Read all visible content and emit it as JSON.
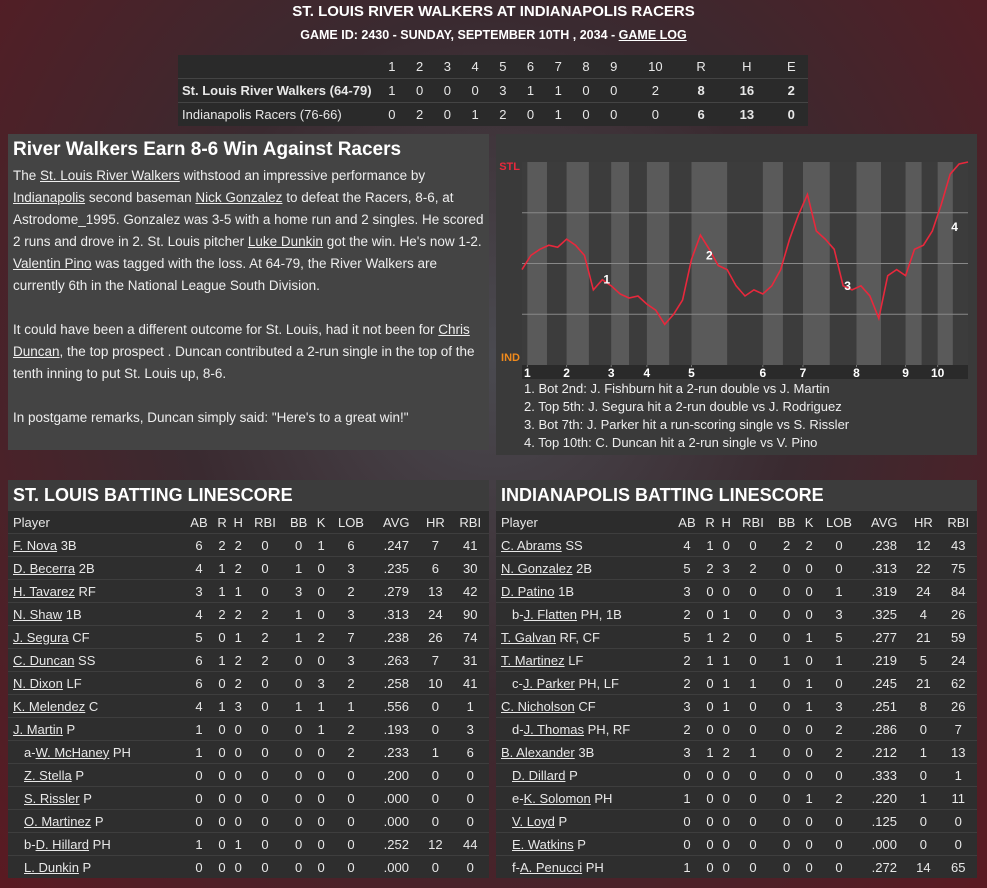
{
  "header": {
    "title": "ST. LOUIS RIVER WALKERS AT INDIANAPOLIS RACERS",
    "subtitle": "GAME ID: 2430 - SUNDAY, SEPTEMBER 10TH , 2034 - ",
    "game_log": "GAME LOG"
  },
  "linescore": {
    "columns": [
      "1",
      "2",
      "3",
      "4",
      "5",
      "6",
      "7",
      "8",
      "9",
      "10",
      "R",
      "H",
      "E"
    ],
    "rows": [
      {
        "team": "St. Louis River Walkers (64-79)",
        "values": [
          1,
          0,
          0,
          0,
          3,
          1,
          1,
          0,
          0,
          2,
          8,
          16,
          2
        ]
      },
      {
        "team": "Indianapolis Racers (76-66)",
        "values": [
          0,
          2,
          0,
          1,
          2,
          0,
          1,
          0,
          0,
          0,
          6,
          13,
          0
        ]
      }
    ]
  },
  "story": {
    "headline": "River Walkers Earn 8-6 Win Against Racers",
    "paragraphs": [
      [
        "The ",
        {
          "link": "St. Louis River Walkers"
        },
        " withstood an impressive performance by ",
        {
          "link": "Indianapolis"
        },
        " second baseman ",
        {
          "link": "Nick Gonzalez"
        },
        " to defeat the Racers, 8-6, at Astrodome_1995. Gonzalez was 3-5 with a home run and 2 singles. He scored 2 runs and drove in 2. St. Louis pitcher ",
        {
          "link": "Luke Dunkin"
        },
        " got the win. He's now 1-2. ",
        {
          "link": "Valentin Pino"
        },
        " was tagged with the loss. At 64-79, the River Walkers are currently 6th in the National League South Division."
      ],
      [
        "It could have been a different outcome for St. Louis, had it not been for ",
        {
          "link": "Chris Duncan"
        },
        ", the top prospect . Duncan contributed a 2-run single in the top of the tenth inning to put St. Louis up, 8-6."
      ],
      [
        "In postgame remarks, Duncan simply said: \"Here's to a great win!\""
      ]
    ]
  },
  "chart_data": {
    "type": "line",
    "top_label": "STL",
    "bottom_label": "IND",
    "color": "#e8283c",
    "ylim": [
      0,
      100
    ],
    "xlim": [
      0,
      50
    ],
    "xticks": [
      {
        "value": 0.6,
        "label": "1"
      },
      {
        "value": 5,
        "label": "2"
      },
      {
        "value": 10,
        "label": "3"
      },
      {
        "value": 14,
        "label": "4"
      },
      {
        "value": 19,
        "label": "5"
      },
      {
        "value": 27,
        "label": "6"
      },
      {
        "value": 31.5,
        "label": "7"
      },
      {
        "value": 37.5,
        "label": "8"
      },
      {
        "value": 43,
        "label": "9"
      },
      {
        "value": 46.6,
        "label": "10"
      }
    ],
    "values": [
      47,
      54,
      57,
      59,
      58,
      62,
      59,
      54,
      37,
      42,
      39,
      35,
      33,
      34,
      30,
      27,
      20,
      25,
      32,
      52,
      64,
      57,
      49,
      47,
      39,
      34,
      37,
      35,
      39,
      47,
      62,
      74,
      84,
      66,
      62,
      57,
      39,
      37,
      39,
      34,
      23,
      44,
      47,
      44,
      57,
      59,
      66,
      79,
      94,
      99,
      100
    ],
    "annotations": [
      {
        "label": "1",
        "x": 9.5,
        "y": 42
      },
      {
        "label": "2",
        "x": 21,
        "y": 54
      },
      {
        "label": "3",
        "x": 36.5,
        "y": 39
      },
      {
        "label": "4",
        "x": 48.5,
        "y": 68
      }
    ],
    "notes": [
      "1. Bot 2nd: J. Fishburn hit a 2-run double vs J. Martin",
      "2. Top 5th: J. Segura hit a 2-run double vs J. Rodriguez",
      "3. Bot 7th: J. Parker hit a run-scoring single vs S. Rissler",
      "4. Top 10th: C. Duncan hit a 2-run single vs V. Pino"
    ]
  },
  "batting": [
    {
      "title": "ST. LOUIS BATTING LINESCORE",
      "columns": [
        "Player",
        "AB",
        "R",
        "H",
        "RBI",
        "BB",
        "K",
        "LOB",
        "AVG",
        "HR",
        "RBI"
      ],
      "rows": [
        {
          "name": "F. Nova",
          "pos": "3B",
          "stats": [
            6,
            2,
            2,
            0,
            0,
            1,
            6,
            ".247",
            7,
            41
          ]
        },
        {
          "name": "D. Becerra",
          "pos": "2B",
          "stats": [
            4,
            1,
            2,
            0,
            1,
            0,
            3,
            ".235",
            6,
            30
          ]
        },
        {
          "name": "H. Tavarez",
          "pos": "RF",
          "stats": [
            3,
            1,
            1,
            0,
            3,
            0,
            2,
            ".279",
            13,
            42
          ]
        },
        {
          "name": "N. Shaw",
          "pos": "1B",
          "stats": [
            4,
            2,
            2,
            2,
            1,
            0,
            3,
            ".313",
            24,
            90
          ]
        },
        {
          "name": "J. Segura",
          "pos": "CF",
          "stats": [
            5,
            0,
            1,
            2,
            1,
            2,
            7,
            ".238",
            26,
            74
          ]
        },
        {
          "name": "C. Duncan",
          "pos": "SS",
          "stats": [
            6,
            1,
            2,
            2,
            0,
            0,
            3,
            ".263",
            7,
            31
          ]
        },
        {
          "name": "N. Dixon",
          "pos": "LF",
          "stats": [
            6,
            0,
            2,
            0,
            0,
            3,
            2,
            ".258",
            10,
            41
          ]
        },
        {
          "name": "K. Melendez",
          "pos": "C",
          "stats": [
            4,
            1,
            3,
            0,
            1,
            1,
            1,
            ".556",
            0,
            1
          ]
        },
        {
          "name": "J. Martin",
          "pos": "P",
          "stats": [
            1,
            0,
            0,
            0,
            0,
            1,
            2,
            ".193",
            0,
            3
          ]
        },
        {
          "prefix": "a-",
          "name": "W. McHaney",
          "pos": "PH",
          "indent": true,
          "stats": [
            1,
            0,
            0,
            0,
            0,
            0,
            2,
            ".233",
            1,
            6
          ]
        },
        {
          "name": "Z. Stella",
          "pos": "P",
          "indent": true,
          "stats": [
            0,
            0,
            0,
            0,
            0,
            0,
            0,
            ".200",
            0,
            0
          ]
        },
        {
          "name": "S. Rissler",
          "pos": "P",
          "indent": true,
          "stats": [
            0,
            0,
            0,
            0,
            0,
            0,
            0,
            ".000",
            0,
            0
          ]
        },
        {
          "name": "O. Martinez",
          "pos": "P",
          "indent": true,
          "stats": [
            0,
            0,
            0,
            0,
            0,
            0,
            0,
            ".000",
            0,
            0
          ]
        },
        {
          "prefix": "b-",
          "name": "D. Hillard",
          "pos": "PH",
          "indent": true,
          "stats": [
            1,
            0,
            1,
            0,
            0,
            0,
            0,
            ".252",
            12,
            44
          ]
        },
        {
          "name": "L. Dunkin",
          "pos": "P",
          "indent": true,
          "stats": [
            0,
            0,
            0,
            0,
            0,
            0,
            0,
            ".000",
            0,
            0
          ]
        }
      ]
    },
    {
      "title": "INDIANAPOLIS BATTING LINESCORE",
      "columns": [
        "Player",
        "AB",
        "R",
        "H",
        "RBI",
        "BB",
        "K",
        "LOB",
        "AVG",
        "HR",
        "RBI"
      ],
      "rows": [
        {
          "name": "C. Abrams",
          "pos": "SS",
          "stats": [
            4,
            1,
            0,
            0,
            2,
            2,
            0,
            ".238",
            12,
            43
          ]
        },
        {
          "name": "N. Gonzalez",
          "pos": "2B",
          "stats": [
            5,
            2,
            3,
            2,
            0,
            0,
            0,
            ".313",
            22,
            75
          ]
        },
        {
          "name": "D. Patino",
          "pos": "1B",
          "stats": [
            3,
            0,
            0,
            0,
            0,
            0,
            1,
            ".319",
            24,
            84
          ]
        },
        {
          "prefix": "b-",
          "name": "J. Flatten",
          "pos": "PH, 1B",
          "indent": true,
          "stats": [
            2,
            0,
            1,
            0,
            0,
            0,
            3,
            ".325",
            4,
            26
          ]
        },
        {
          "name": "T. Galvan",
          "pos": "RF, CF",
          "stats": [
            5,
            1,
            2,
            0,
            0,
            1,
            5,
            ".277",
            21,
            59
          ]
        },
        {
          "name": "T. Martinez",
          "pos": "LF",
          "stats": [
            2,
            1,
            1,
            0,
            1,
            0,
            1,
            ".219",
            5,
            24
          ]
        },
        {
          "prefix": "c-",
          "name": "J. Parker",
          "pos": "PH, LF",
          "indent": true,
          "stats": [
            2,
            0,
            1,
            1,
            0,
            1,
            0,
            ".245",
            21,
            62
          ]
        },
        {
          "name": "C. Nicholson",
          "pos": "CF",
          "stats": [
            3,
            0,
            1,
            0,
            0,
            1,
            3,
            ".251",
            8,
            26
          ]
        },
        {
          "prefix": "d-",
          "name": "J. Thomas",
          "pos": "PH, RF",
          "indent": true,
          "stats": [
            2,
            0,
            0,
            0,
            0,
            0,
            2,
            ".286",
            0,
            7
          ]
        },
        {
          "name": "B. Alexander",
          "pos": "3B",
          "stats": [
            3,
            1,
            2,
            1,
            0,
            0,
            2,
            ".212",
            1,
            13
          ]
        },
        {
          "name": "D. Dillard",
          "pos": "P",
          "indent": true,
          "stats": [
            0,
            0,
            0,
            0,
            0,
            0,
            0,
            ".333",
            0,
            1
          ]
        },
        {
          "prefix": "e-",
          "name": "K. Solomon",
          "pos": "PH",
          "indent": true,
          "stats": [
            1,
            0,
            0,
            0,
            0,
            1,
            2,
            ".220",
            1,
            11
          ]
        },
        {
          "name": "V. Loyd",
          "pos": "P",
          "indent": true,
          "stats": [
            0,
            0,
            0,
            0,
            0,
            0,
            0,
            ".125",
            0,
            0
          ]
        },
        {
          "name": "E. Watkins",
          "pos": "P",
          "indent": true,
          "stats": [
            0,
            0,
            0,
            0,
            0,
            0,
            0,
            ".000",
            0,
            0
          ]
        },
        {
          "prefix": "f-",
          "name": "A. Penucci",
          "pos": "PH",
          "indent": true,
          "stats": [
            1,
            0,
            0,
            0,
            0,
            0,
            0,
            ".272",
            14,
            65
          ]
        }
      ]
    }
  ]
}
